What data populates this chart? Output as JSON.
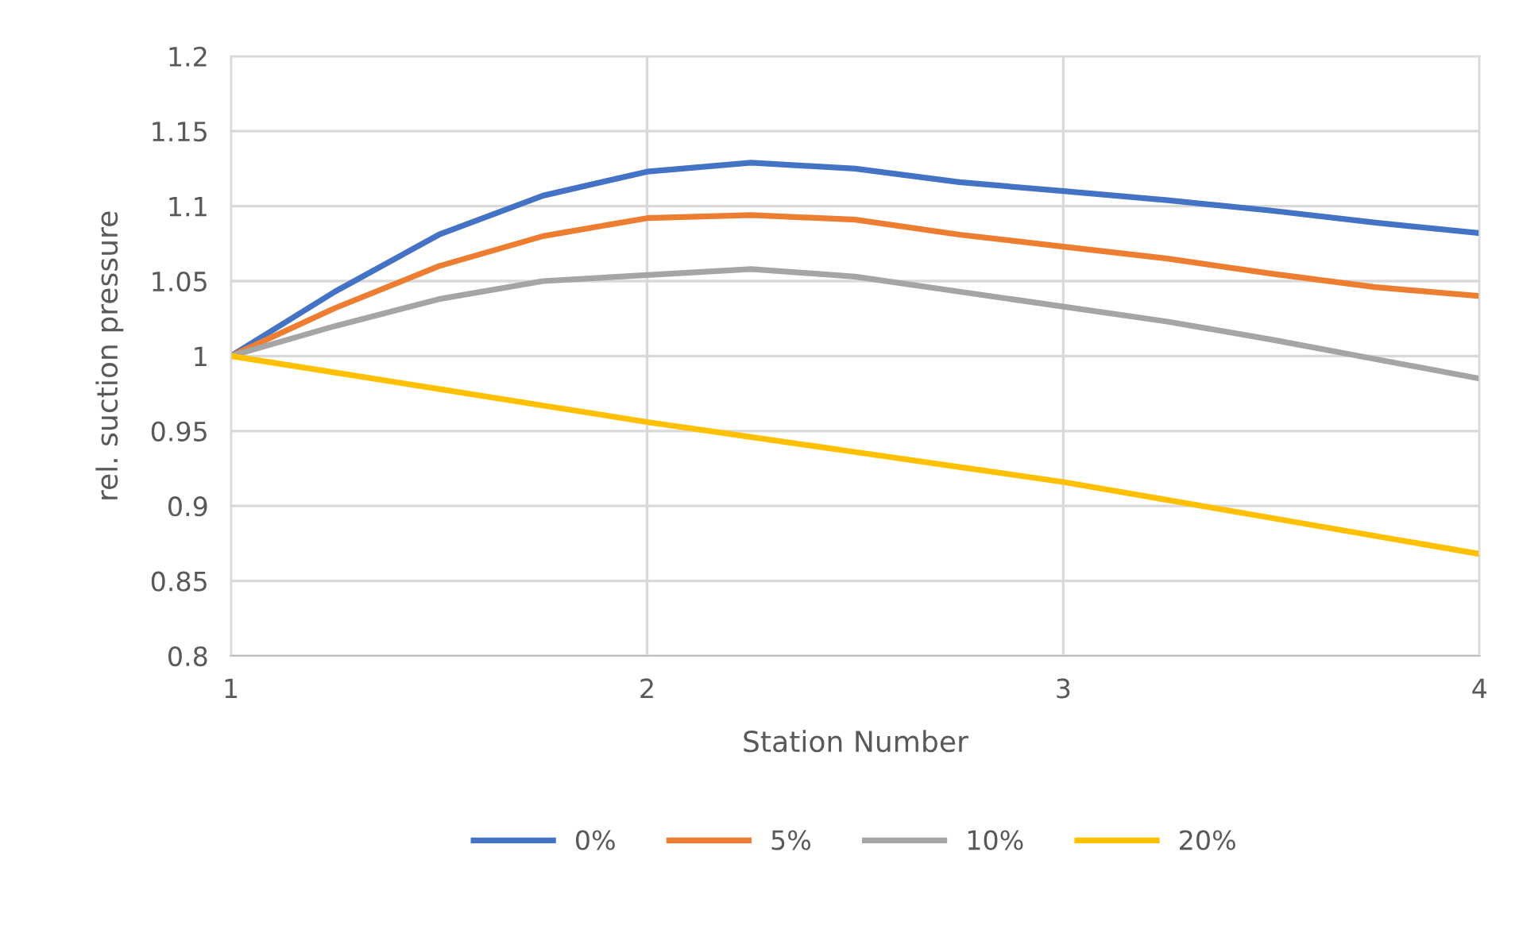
{
  "chart_data": {
    "type": "line",
    "xlabel": "Station Number",
    "ylabel": "rel. suction pressure",
    "x": [
      1,
      1.25,
      1.5,
      1.75,
      2,
      2.25,
      2.5,
      2.75,
      3,
      3.25,
      3.5,
      3.75,
      4
    ],
    "xlim": [
      1,
      4
    ],
    "xticks": [
      1,
      2,
      3,
      4
    ],
    "ylim": [
      0.8,
      1.2
    ],
    "yticks": [
      0.8,
      0.85,
      0.9,
      0.95,
      1,
      1.05,
      1.1,
      1.15,
      1.2
    ],
    "grid": true,
    "legend": "bottom",
    "line_style": "solid",
    "series": [
      {
        "name": "0%",
        "color": "#4472c4",
        "values": [
          1,
          1.043,
          1.081,
          1.107,
          1.123,
          1.129,
          1.125,
          1.116,
          1.11,
          1.104,
          1.097,
          1.089,
          1.082
        ]
      },
      {
        "name": "5%",
        "color": "#ed7d31",
        "values": [
          1,
          1.032,
          1.06,
          1.08,
          1.092,
          1.094,
          1.091,
          1.081,
          1.073,
          1.065,
          1.055,
          1.046,
          1.04
        ]
      },
      {
        "name": "10%",
        "color": "#a5a5a5",
        "values": [
          1,
          1.02,
          1.038,
          1.05,
          1.054,
          1.058,
          1.053,
          1.043,
          1.033,
          1.023,
          1.011,
          0.998,
          0.985
        ]
      },
      {
        "name": "20%",
        "color": "#ffc000",
        "values": [
          1,
          0.989,
          0.978,
          0.967,
          0.956,
          0.946,
          0.936,
          0.926,
          0.916,
          0.904,
          0.892,
          0.88,
          0.868
        ]
      }
    ]
  }
}
